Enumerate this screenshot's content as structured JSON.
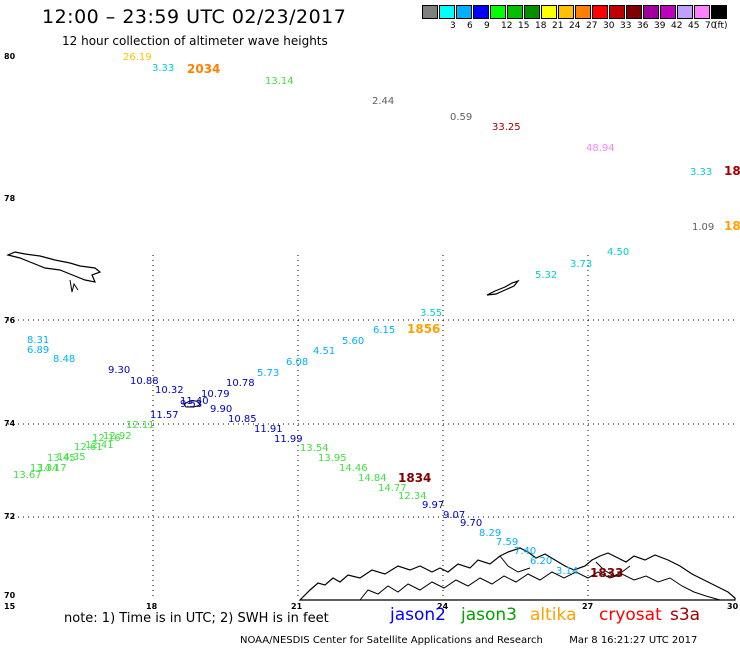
{
  "title": "12:00 – 23:59 UTC 02/23/2017",
  "subtitle": "12 hour collection of altimeter wave heights",
  "colorbar": {
    "unit": "(ft)",
    "bins": [
      {
        "label": "",
        "color": "#808080"
      },
      {
        "label": "3",
        "color": "#00ffff"
      },
      {
        "label": "6",
        "color": "#00b0ff"
      },
      {
        "label": "9",
        "color": "#0000ff"
      },
      {
        "label": "12",
        "color": "#00ff00"
      },
      {
        "label": "15",
        "color": "#00c000"
      },
      {
        "label": "18",
        "color": "#009000"
      },
      {
        "label": "21",
        "color": "#ffff00"
      },
      {
        "label": "24",
        "color": "#ffc000"
      },
      {
        "label": "27",
        "color": "#ff8000"
      },
      {
        "label": "30",
        "color": "#ff0000"
      },
      {
        "label": "33",
        "color": "#c00000"
      },
      {
        "label": "36",
        "color": "#800000"
      },
      {
        "label": "39",
        "color": "#a000a0"
      },
      {
        "label": "42",
        "color": "#c000c0"
      },
      {
        "label": "45",
        "color": "#c0a0ff"
      },
      {
        "label": "70",
        "color": "#ff80ff"
      },
      {
        "label": "",
        "color": "#000000"
      }
    ]
  },
  "axes": {
    "lat_labels": [
      "80",
      "78",
      "76",
      "74",
      "72",
      "70"
    ],
    "lon_labels": [
      "15",
      "18",
      "21",
      "24",
      "27",
      "30"
    ]
  },
  "track_west": {
    "values": [
      {
        "v": "26.19",
        "c": "#ffc000"
      },
      {
        "v": "3.33",
        "c": "#00d0d0"
      },
      {
        "v": "2034",
        "c": "#ff8000",
        "time": true
      },
      {
        "v": "13.14",
        "c": "#40e040"
      },
      {
        "v": "2.44",
        "c": "#606060"
      },
      {
        "v": "0.59",
        "c": "#606060"
      },
      {
        "v": "33.25",
        "c": "#a00000"
      },
      {
        "v": "48.94",
        "c": "#ff80ff"
      },
      {
        "v": "3.33",
        "c": "#00d0d0"
      },
      {
        "v": "18",
        "c": "#a00000",
        "time": true
      },
      {
        "v": "1.09",
        "c": "#606060"
      },
      {
        "v": "18",
        "c": "#ffa000",
        "time": true
      }
    ]
  },
  "track_a": {
    "values": [
      {
        "v": "8.31",
        "c": "#00b0ff"
      },
      {
        "v": "6.89",
        "c": "#00b0ff"
      },
      {
        "v": "8.48",
        "c": "#00b0ff"
      },
      {
        "v": "9.30",
        "c": "#0000c0"
      },
      {
        "v": "10.88",
        "c": "#0000c0"
      },
      {
        "v": "10.32",
        "c": "#0000c0"
      },
      {
        "v": "11.40",
        "c": "#0000c0"
      },
      {
        "v": "9.53",
        "c": "#0000c0"
      },
      {
        "v": "9.90",
        "c": "#0000c0"
      },
      {
        "v": "10.85",
        "c": "#0000c0"
      },
      {
        "v": "11.91",
        "c": "#0000c0"
      },
      {
        "v": "11.99",
        "c": "#0000c0"
      },
      {
        "v": "13.54",
        "c": "#40e040"
      },
      {
        "v": "13.95",
        "c": "#40e040"
      },
      {
        "v": "14.46",
        "c": "#40e040"
      },
      {
        "v": "14.84",
        "c": "#40e040"
      },
      {
        "v": "1834",
        "c": "#800000",
        "time": true
      },
      {
        "v": "14.77",
        "c": "#40e040"
      },
      {
        "v": "12.34",
        "c": "#40e040"
      },
      {
        "v": "9.97",
        "c": "#0000c0"
      },
      {
        "v": "9.07",
        "c": "#0000c0"
      },
      {
        "v": "9.70",
        "c": "#0000c0"
      },
      {
        "v": "8.29",
        "c": "#00b0ff"
      },
      {
        "v": "7.59",
        "c": "#00b0ff"
      },
      {
        "v": "7.40",
        "c": "#00b0ff"
      },
      {
        "v": "6.20",
        "c": "#00b0ff"
      },
      {
        "v": "3.14",
        "c": "#00b0ff"
      },
      {
        "v": "1833",
        "c": "#800000",
        "time": true
      }
    ]
  },
  "track_b": {
    "values": [
      {
        "v": "11.57",
        "c": "#0000c0"
      },
      {
        "v": "10.79",
        "c": "#0000c0"
      },
      {
        "v": "10.78",
        "c": "#0000c0"
      },
      {
        "v": "5.73",
        "c": "#00b0ff"
      },
      {
        "v": "6.08",
        "c": "#00b0ff"
      },
      {
        "v": "4.51",
        "c": "#00b0ff"
      },
      {
        "v": "5.60",
        "c": "#00b0ff"
      },
      {
        "v": "6.15",
        "c": "#00b0ff"
      },
      {
        "v": "3.55",
        "c": "#00d0d0"
      },
      {
        "v": "1856",
        "c": "#ffa000",
        "time": true
      },
      {
        "v": "5.32",
        "c": "#00d0d0"
      },
      {
        "v": "3.73",
        "c": "#00d0d0"
      },
      {
        "v": "4.50",
        "c": "#00d0d0"
      }
    ]
  },
  "track_c": {
    "values": [
      {
        "v": "12.11",
        "c": "#40e040"
      },
      {
        "v": "12.92",
        "c": "#40e040"
      },
      {
        "v": "12.16",
        "c": "#40e040"
      },
      {
        "v": "12.41",
        "c": "#40e040"
      },
      {
        "v": "12.61",
        "c": "#40e040"
      },
      {
        "v": "14.35",
        "c": "#40e040"
      },
      {
        "v": "13.45",
        "c": "#40e040"
      },
      {
        "v": "14.17",
        "c": "#40e040"
      },
      {
        "v": "13.34",
        "c": "#40e040"
      },
      {
        "v": "13.67",
        "c": "#40e040"
      }
    ]
  },
  "note": "note: 1) Time is in UTC; 2) SWH is in feet",
  "satellites": [
    {
      "name": "jason2",
      "color": "#0000ff"
    },
    {
      "name": "jason3",
      "color": "#00a000"
    },
    {
      "name": "altika",
      "color": "#ffa000"
    },
    {
      "name": "cryosat",
      "color": "#ff0000"
    },
    {
      "name": "s3a",
      "color": "#a00000"
    }
  ],
  "credit": "NOAA/NESDIS Center for Satellite Applications and Research",
  "timestamp": "Mar  8 16:21:27 UTC 2017"
}
